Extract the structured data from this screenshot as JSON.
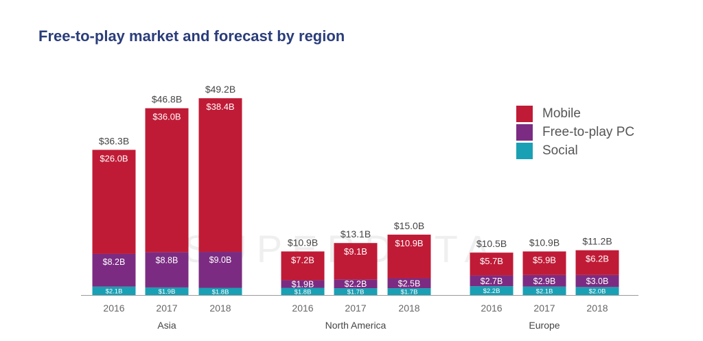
{
  "page": {
    "title": "Free-to-play market and forecast by region",
    "watermark": "SUPERDATA"
  },
  "colors": {
    "Mobile": "#c01b36",
    "Free-to-play PC": "#7b2c82",
    "Social": "#1aa0b4",
    "title": "#2a3d7a"
  },
  "chart_data": {
    "type": "bar",
    "stacked": true,
    "units": "USD billions",
    "groups": [
      {
        "name": "Asia",
        "categories": [
          "2016",
          "2017",
          "2018"
        ]
      },
      {
        "name": "North America",
        "categories": [
          "2016",
          "2017",
          "2018"
        ]
      },
      {
        "name": "Europe",
        "categories": [
          "2016",
          "2017",
          "2018"
        ]
      }
    ],
    "series": [
      {
        "name": "Social",
        "values": [
          2.1,
          1.9,
          1.8,
          1.8,
          1.7,
          1.7,
          2.2,
          2.1,
          2.0
        ]
      },
      {
        "name": "Free-to-play PC",
        "values": [
          8.2,
          8.8,
          9.0,
          1.9,
          2.2,
          2.5,
          2.7,
          2.9,
          3.0
        ]
      },
      {
        "name": "Mobile",
        "values": [
          26.0,
          36.0,
          38.4,
          7.2,
          9.1,
          10.9,
          5.7,
          5.9,
          6.2
        ]
      }
    ],
    "totals": [
      36.3,
      46.8,
      49.2,
      10.9,
      13.1,
      15.0,
      10.5,
      10.9,
      11.2
    ],
    "legend": [
      "Mobile",
      "Free-to-play PC",
      "Social"
    ],
    "legend_position": "right"
  }
}
